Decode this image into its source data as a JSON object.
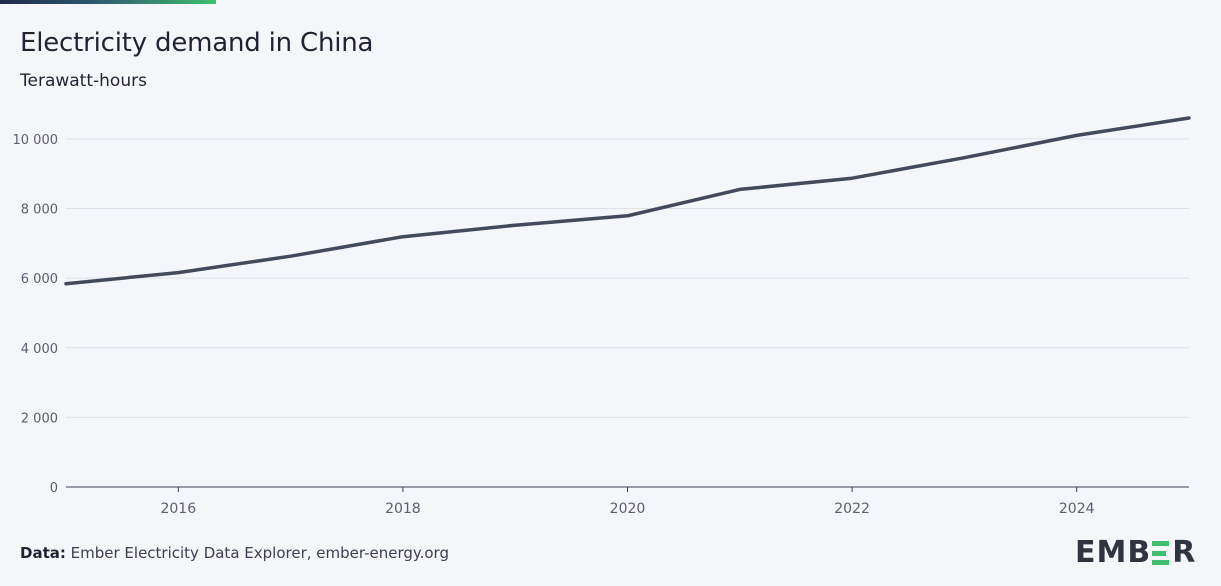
{
  "header": {
    "title": "Electricity demand in China",
    "subtitle": "Terawatt-hours"
  },
  "footer": {
    "source_label": "Data:",
    "source_text": " Ember Electricity Data Explorer, ember-energy.org"
  },
  "logo": {
    "text_before": "EMB",
    "text_after": "R"
  },
  "colors": {
    "line": "#444a5c",
    "grid": "#dfe1e8",
    "axis": "#3a3f50",
    "tick_text": "#5b6070",
    "accent": "#3fbf6e"
  },
  "chart_data": {
    "type": "line",
    "title": "Electricity demand in China",
    "subtitle": "Terawatt-hours",
    "xlabel": "",
    "ylabel": "Terawatt-hours",
    "xlim": [
      2015,
      2025
    ],
    "ylim": [
      0,
      10600
    ],
    "x_ticks": [
      2016,
      2018,
      2020,
      2022,
      2024
    ],
    "y_ticks": [
      0,
      2000,
      4000,
      6000,
      8000,
      10000
    ],
    "y_tick_labels": [
      "0",
      "2 000",
      "4 000",
      "6 000",
      "8 000",
      "10 000"
    ],
    "grid": true,
    "x": [
      2015,
      2016,
      2017,
      2018,
      2019,
      2020,
      2021,
      2022,
      2023,
      2024,
      2025
    ],
    "series": [
      {
        "values": [
          5840,
          6160,
          6630,
          7190,
          7520,
          7790,
          8550,
          8870,
          9460,
          10100,
          10600
        ]
      }
    ]
  }
}
